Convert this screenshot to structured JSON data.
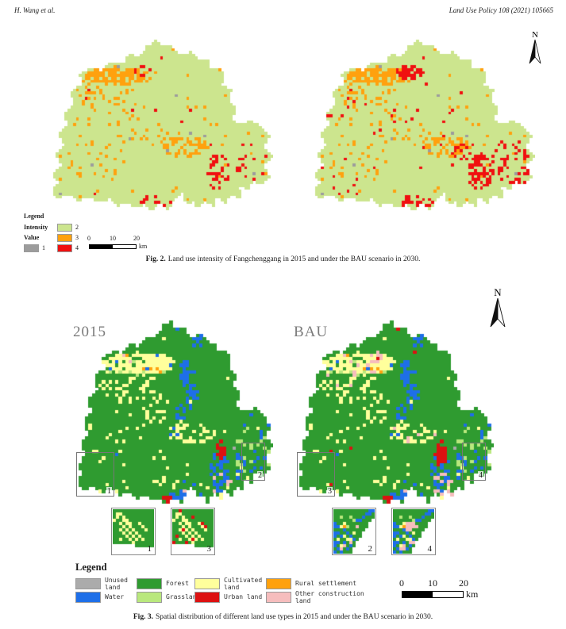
{
  "header": {
    "authors": "H. Wang et al.",
    "journal": "Land Use Policy 108 (2021) 105665"
  },
  "palette": {
    "fig2": {
      "v1": "#9c9c9c",
      "v2": "#cce58e",
      "v3": "#ffa10e",
      "v4": "#f01010"
    },
    "fig3": {
      "unused": "#ababab",
      "water": "#1e6fe8",
      "forest": "#2f9b30",
      "grassland": "#b9e87d",
      "cultivated": "#ffff9c",
      "urban": "#dd1111",
      "rural": "#ffa10e",
      "other": "#f6bdbd"
    }
  },
  "fig2": {
    "north_label": "N",
    "legend": {
      "title": "Legend",
      "group1_label": "Intensity",
      "group2_label": "Value",
      "items": [
        {
          "value": "1",
          "color": "#9c9c9c"
        },
        {
          "value": "2",
          "color": "#cce58e"
        },
        {
          "value": "3",
          "color": "#ffa10e"
        },
        {
          "value": "4",
          "color": "#f01010"
        }
      ]
    },
    "scalebar": {
      "ticks": [
        "0",
        "10",
        "20"
      ],
      "unit": "km"
    },
    "caption": {
      "label": "Fig. 2.",
      "text": "Land use intensity of Fangchenggang in 2015 and under the BAU scenario in 2030."
    }
  },
  "fig3": {
    "north_label": "N",
    "map_left_label": "2015",
    "map_right_label": "BAU",
    "overlays": {
      "r1": "1",
      "r2": "2",
      "r3": "3",
      "r4": "4"
    },
    "insets": {
      "i1": "1",
      "i3": "3",
      "i2": "2",
      "i4": "4"
    },
    "legend": {
      "title": "Legend",
      "items": [
        {
          "label": "Unused land",
          "color": "#ababab"
        },
        {
          "label": "Water",
          "color": "#1e6fe8"
        },
        {
          "label": "Forest",
          "color": "#2f9b30"
        },
        {
          "label": "Grassland",
          "color": "#b9e87d"
        },
        {
          "label": "Cultivated land",
          "color": "#ffff9c"
        },
        {
          "label": "Urban land",
          "color": "#dd1111"
        },
        {
          "label": "Rural settlement",
          "color": "#ffa10e"
        },
        {
          "label": "Other construction land",
          "color": "#f6bdbd"
        }
      ]
    },
    "scalebar": {
      "ticks": [
        "0",
        "10",
        "20"
      ],
      "unit": "km"
    },
    "caption": {
      "label": "Fig. 3.",
      "text": "Spatial distribution of different land use types in 2015 and under the BAU scenario in 2030."
    }
  }
}
